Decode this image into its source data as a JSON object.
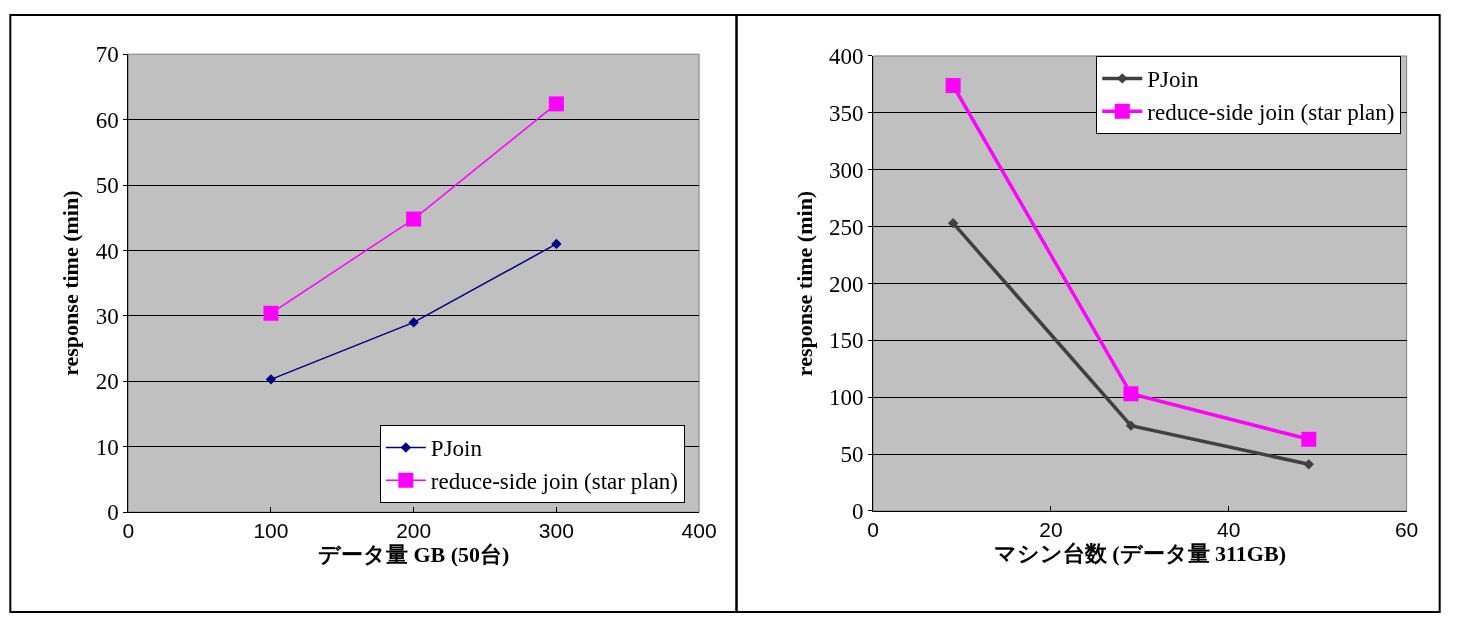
{
  "chart_data": [
    {
      "type": "line",
      "xlabel": "データ量 GB (50台)",
      "ylabel": "response time (min)",
      "x": [
        100,
        200,
        300
      ],
      "xlim": [
        0,
        400
      ],
      "xticks": [
        0,
        100,
        200,
        300,
        400
      ],
      "ylim": [
        0,
        70
      ],
      "yticks": [
        0,
        10,
        20,
        30,
        40,
        50,
        60,
        70
      ],
      "grid": "y",
      "legend": "bottom right",
      "series": [
        {
          "name": "PJoin",
          "color": "#000080",
          "marker": "diamond",
          "values": [
            20.3,
            29,
            41
          ]
        },
        {
          "name": "reduce-side join (star plan)",
          "color": "#ff00ff",
          "marker": "square",
          "values": [
            30.4,
            44.8,
            62.4
          ]
        }
      ]
    },
    {
      "type": "line",
      "xlabel": "マシン台数 (データ量 311GB)",
      "ylabel": "response time (min)",
      "x": [
        9,
        29,
        49
      ],
      "xlim": [
        0,
        60
      ],
      "xticks": [
        0,
        20,
        40,
        60
      ],
      "ylim": [
        0,
        400
      ],
      "yticks": [
        0,
        50,
        100,
        150,
        200,
        250,
        300,
        350,
        400
      ],
      "grid": "y",
      "legend": "top right",
      "series": [
        {
          "name": "PJoin",
          "color": "#404040",
          "marker": "diamond",
          "values": [
            253,
            75,
            41
          ]
        },
        {
          "name": "reduce-side join (star plan)",
          "color": "#ff00ff",
          "marker": "square",
          "values": [
            374,
            103,
            63
          ]
        }
      ]
    }
  ]
}
